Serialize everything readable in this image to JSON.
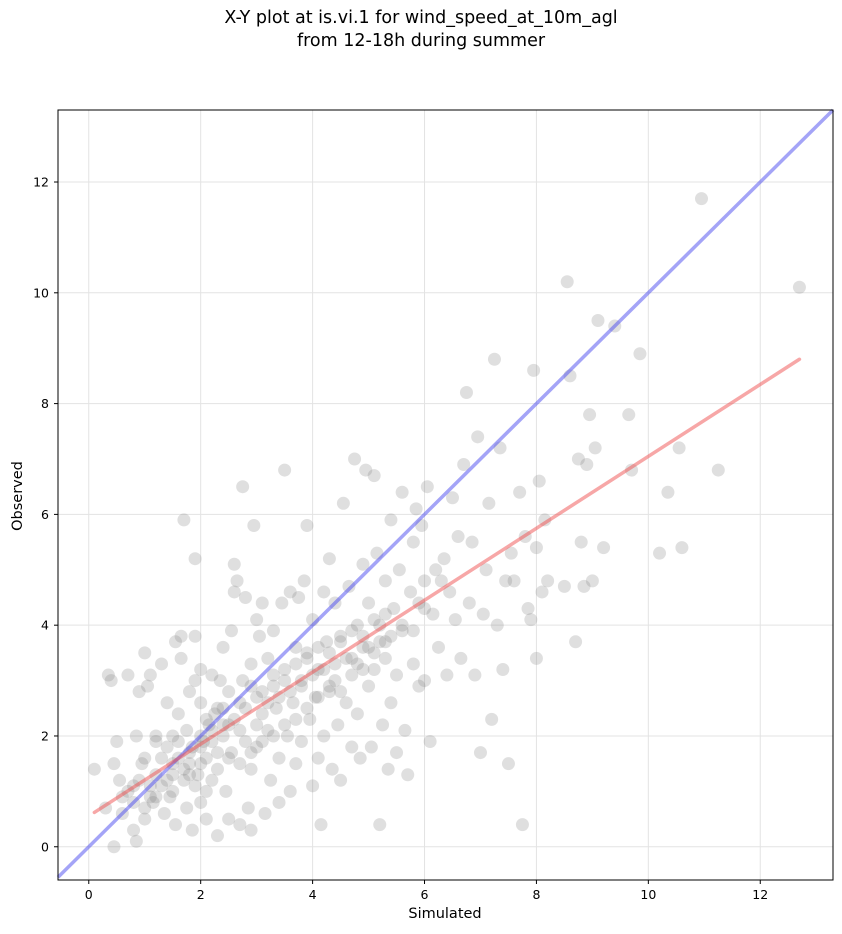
{
  "chart_data": {
    "type": "scatter",
    "title": [
      "X-Y plot at is.vi.1 for wind_speed_at_10m_agl",
      "from 12-18h during summer"
    ],
    "xlabel": "Simulated",
    "ylabel": "Observed",
    "xlim": [
      -0.55,
      13.3
    ],
    "ylim": [
      -0.6,
      13.3
    ],
    "xticks": [
      0,
      2,
      4,
      6,
      8,
      10,
      12
    ],
    "yticks": [
      0,
      2,
      4,
      6,
      8,
      10,
      12
    ],
    "grid": true,
    "colors": {
      "points": "#808080",
      "identity_line": "#4a4af0",
      "fit_line": "#f05050"
    },
    "identity_line": {
      "x": [
        -0.55,
        13.3
      ],
      "y": [
        -0.55,
        13.3
      ]
    },
    "fit_line": {
      "x": [
        0.1,
        12.7
      ],
      "y": [
        0.62,
        8.8
      ]
    },
    "points": [
      [
        0.1,
        1.4
      ],
      [
        0.3,
        0.7
      ],
      [
        0.35,
        3.1
      ],
      [
        0.4,
        3.0
      ],
      [
        0.45,
        1.5
      ],
      [
        0.45,
        0.0
      ],
      [
        0.5,
        1.9
      ],
      [
        0.55,
        1.2
      ],
      [
        0.6,
        0.6
      ],
      [
        0.7,
        3.1
      ],
      [
        0.8,
        1.1
      ],
      [
        0.8,
        0.3
      ],
      [
        0.85,
        2.0
      ],
      [
        0.85,
        0.1
      ],
      [
        0.9,
        2.8
      ],
      [
        0.95,
        1.5
      ],
      [
        1.0,
        0.5
      ],
      [
        1.0,
        3.5
      ],
      [
        1.05,
        2.9
      ],
      [
        1.1,
        3.1
      ],
      [
        1.1,
        1.1
      ],
      [
        1.15,
        0.8
      ],
      [
        1.2,
        1.9
      ],
      [
        1.2,
        2.0
      ],
      [
        1.3,
        3.3
      ],
      [
        1.3,
        1.6
      ],
      [
        1.35,
        0.6
      ],
      [
        1.4,
        2.6
      ],
      [
        1.45,
        0.9
      ],
      [
        1.5,
        1.5
      ],
      [
        1.5,
        2.0
      ],
      [
        1.55,
        3.7
      ],
      [
        1.55,
        0.4
      ],
      [
        1.6,
        2.4
      ],
      [
        1.65,
        3.8
      ],
      [
        1.65,
        3.4
      ],
      [
        1.7,
        5.9
      ],
      [
        1.7,
        1.2
      ],
      [
        1.75,
        2.1
      ],
      [
        1.75,
        0.7
      ],
      [
        1.8,
        2.8
      ],
      [
        1.8,
        1.3
      ],
      [
        1.85,
        0.3
      ],
      [
        1.85,
        1.8
      ],
      [
        1.9,
        5.2
      ],
      [
        1.9,
        3.8
      ],
      [
        1.9,
        3.0
      ],
      [
        1.95,
        1.3
      ],
      [
        2.0,
        0.8
      ],
      [
        2.0,
        2.6
      ],
      [
        2.0,
        3.2
      ],
      [
        2.0,
        2.0
      ],
      [
        2.05,
        1.9
      ],
      [
        2.1,
        1.6
      ],
      [
        2.1,
        0.5
      ],
      [
        2.15,
        2.2
      ],
      [
        2.2,
        3.1
      ],
      [
        2.2,
        1.2
      ],
      [
        2.25,
        2.4
      ],
      [
        2.3,
        0.2
      ],
      [
        2.3,
        1.7
      ],
      [
        2.35,
        3.0
      ],
      [
        2.4,
        3.6
      ],
      [
        2.4,
        2.5
      ],
      [
        2.45,
        1.0
      ],
      [
        2.5,
        2.2
      ],
      [
        2.5,
        0.5
      ],
      [
        2.55,
        3.9
      ],
      [
        2.55,
        1.7
      ],
      [
        2.6,
        5.1
      ],
      [
        2.6,
        4.6
      ],
      [
        2.65,
        4.8
      ],
      [
        2.7,
        2.1
      ],
      [
        2.7,
        0.4
      ],
      [
        2.75,
        3.0
      ],
      [
        2.75,
        6.5
      ],
      [
        2.8,
        1.9
      ],
      [
        2.8,
        4.5
      ],
      [
        2.85,
        0.7
      ],
      [
        2.9,
        3.3
      ],
      [
        2.9,
        1.4
      ],
      [
        2.9,
        0.3
      ],
      [
        2.95,
        5.8
      ],
      [
        3.0,
        4.1
      ],
      [
        3.0,
        2.7
      ],
      [
        3.0,
        1.8
      ],
      [
        3.05,
        3.8
      ],
      [
        3.1,
        2.4
      ],
      [
        3.1,
        4.4
      ],
      [
        3.15,
        0.6
      ],
      [
        3.2,
        3.4
      ],
      [
        3.2,
        2.1
      ],
      [
        3.25,
        1.2
      ],
      [
        3.3,
        3.9
      ],
      [
        3.3,
        2.9
      ],
      [
        3.35,
        2.5
      ],
      [
        3.4,
        1.6
      ],
      [
        3.4,
        0.8
      ],
      [
        3.45,
        4.4
      ],
      [
        3.5,
        6.8
      ],
      [
        3.5,
        3.2
      ],
      [
        3.55,
        2.0
      ],
      [
        3.6,
        4.6
      ],
      [
        3.6,
        1.0
      ],
      [
        3.65,
        2.6
      ],
      [
        3.7,
        3.6
      ],
      [
        3.7,
        1.5
      ],
      [
        3.75,
        4.5
      ],
      [
        3.8,
        2.9
      ],
      [
        3.8,
        1.9
      ],
      [
        3.85,
        4.8
      ],
      [
        3.9,
        5.8
      ],
      [
        3.9,
        3.5
      ],
      [
        3.95,
        2.3
      ],
      [
        4.0,
        1.1
      ],
      [
        4.0,
        4.1
      ],
      [
        4.05,
        2.7
      ],
      [
        4.1,
        3.2
      ],
      [
        4.1,
        1.6
      ],
      [
        4.15,
        0.4
      ],
      [
        4.2,
        4.6
      ],
      [
        4.2,
        2.0
      ],
      [
        4.25,
        3.7
      ],
      [
        4.3,
        5.2
      ],
      [
        4.3,
        2.8
      ],
      [
        4.35,
        1.4
      ],
      [
        4.4,
        4.4
      ],
      [
        4.4,
        3.0
      ],
      [
        4.45,
        2.2
      ],
      [
        4.5,
        3.8
      ],
      [
        4.5,
        1.2
      ],
      [
        4.55,
        6.2
      ],
      [
        4.6,
        2.6
      ],
      [
        4.65,
        4.7
      ],
      [
        4.7,
        3.4
      ],
      [
        4.7,
        1.8
      ],
      [
        4.75,
        7.0
      ],
      [
        4.8,
        4.0
      ],
      [
        4.8,
        2.4
      ],
      [
        4.85,
        1.6
      ],
      [
        4.9,
        3.6
      ],
      [
        4.9,
        5.1
      ],
      [
        4.95,
        6.8
      ],
      [
        5.0,
        2.9
      ],
      [
        5.0,
        4.4
      ],
      [
        5.05,
        1.8
      ],
      [
        5.1,
        6.7
      ],
      [
        5.1,
        3.2
      ],
      [
        5.15,
        5.3
      ],
      [
        5.2,
        4.0
      ],
      [
        5.2,
        0.4
      ],
      [
        5.25,
        2.2
      ],
      [
        5.3,
        4.8
      ],
      [
        5.3,
        3.7
      ],
      [
        5.35,
        1.4
      ],
      [
        5.4,
        5.9
      ],
      [
        5.4,
        2.6
      ],
      [
        5.45,
        4.3
      ],
      [
        5.5,
        3.1
      ],
      [
        5.5,
        1.7
      ],
      [
        5.55,
        5.0
      ],
      [
        5.6,
        6.4
      ],
      [
        5.6,
        3.9
      ],
      [
        5.65,
        2.1
      ],
      [
        5.7,
        1.3
      ],
      [
        5.75,
        4.6
      ],
      [
        5.8,
        5.5
      ],
      [
        5.8,
        3.3
      ],
      [
        5.85,
        6.1
      ],
      [
        5.9,
        4.4
      ],
      [
        5.9,
        2.9
      ],
      [
        5.95,
        5.8
      ],
      [
        6.0,
        4.8
      ],
      [
        6.0,
        3.0
      ],
      [
        6.05,
        6.5
      ],
      [
        6.1,
        1.9
      ],
      [
        6.15,
        4.2
      ],
      [
        6.2,
        5.0
      ],
      [
        6.25,
        3.6
      ],
      [
        6.3,
        4.8
      ],
      [
        6.35,
        5.2
      ],
      [
        6.4,
        3.1
      ],
      [
        6.45,
        4.6
      ],
      [
        6.5,
        6.3
      ],
      [
        6.55,
        4.1
      ],
      [
        6.6,
        5.6
      ],
      [
        6.65,
        3.4
      ],
      [
        6.7,
        6.9
      ],
      [
        6.75,
        8.2
      ],
      [
        6.8,
        4.4
      ],
      [
        6.85,
        5.5
      ],
      [
        6.9,
        3.1
      ],
      [
        6.95,
        7.4
      ],
      [
        7.0,
        1.7
      ],
      [
        7.05,
        4.2
      ],
      [
        7.1,
        5.0
      ],
      [
        7.15,
        6.2
      ],
      [
        7.2,
        2.3
      ],
      [
        7.25,
        8.8
      ],
      [
        7.3,
        4.0
      ],
      [
        7.35,
        7.2
      ],
      [
        7.4,
        3.2
      ],
      [
        7.45,
        4.8
      ],
      [
        7.5,
        1.5
      ],
      [
        7.55,
        5.3
      ],
      [
        7.6,
        4.8
      ],
      [
        7.7,
        6.4
      ],
      [
        7.75,
        0.4
      ],
      [
        7.8,
        5.6
      ],
      [
        7.85,
        4.3
      ],
      [
        7.9,
        4.1
      ],
      [
        7.95,
        8.6
      ],
      [
        8.0,
        5.4
      ],
      [
        8.0,
        3.4
      ],
      [
        8.05,
        6.6
      ],
      [
        8.1,
        4.6
      ],
      [
        8.15,
        5.9
      ],
      [
        8.2,
        4.8
      ],
      [
        8.5,
        4.7
      ],
      [
        8.55,
        10.2
      ],
      [
        8.6,
        8.5
      ],
      [
        8.7,
        3.7
      ],
      [
        8.75,
        7.0
      ],
      [
        8.8,
        5.5
      ],
      [
        8.85,
        4.7
      ],
      [
        8.9,
        6.9
      ],
      [
        8.95,
        7.8
      ],
      [
        9.0,
        4.8
      ],
      [
        9.05,
        7.2
      ],
      [
        9.1,
        9.5
      ],
      [
        9.2,
        5.4
      ],
      [
        9.4,
        9.4
      ],
      [
        9.65,
        7.8
      ],
      [
        9.7,
        6.8
      ],
      [
        9.85,
        8.9
      ],
      [
        10.2,
        5.3
      ],
      [
        10.35,
        6.4
      ],
      [
        10.55,
        7.2
      ],
      [
        10.6,
        5.4
      ],
      [
        10.95,
        11.7
      ],
      [
        11.25,
        6.8
      ],
      [
        12.7,
        10.1
      ],
      [
        1.0,
        1.6
      ],
      [
        1.2,
        1.3
      ],
      [
        1.4,
        1.8
      ],
      [
        1.6,
        1.9
      ],
      [
        1.8,
        1.7
      ],
      [
        2.0,
        1.5
      ],
      [
        2.2,
        1.9
      ],
      [
        2.4,
        2.0
      ],
      [
        2.6,
        2.3
      ],
      [
        2.8,
        2.5
      ],
      [
        3.0,
        2.2
      ],
      [
        3.2,
        2.6
      ],
      [
        3.4,
        2.7
      ],
      [
        3.6,
        2.8
      ],
      [
        3.8,
        3.0
      ],
      [
        4.0,
        3.1
      ],
      [
        4.2,
        3.2
      ],
      [
        4.4,
        3.3
      ],
      [
        4.6,
        3.4
      ],
      [
        4.8,
        3.3
      ],
      [
        5.0,
        3.6
      ],
      [
        5.2,
        3.7
      ],
      [
        5.4,
        3.8
      ],
      [
        5.6,
        4.0
      ],
      [
        5.8,
        3.9
      ],
      [
        6.0,
        4.3
      ],
      [
        2.1,
        2.3
      ],
      [
        2.3,
        2.5
      ],
      [
        2.5,
        2.8
      ],
      [
        2.7,
        2.6
      ],
      [
        2.9,
        2.9
      ],
      [
        3.1,
        2.8
      ],
      [
        3.3,
        3.1
      ],
      [
        3.5,
        3.0
      ],
      [
        3.7,
        3.3
      ],
      [
        3.9,
        3.4
      ],
      [
        4.1,
        3.6
      ],
      [
        4.3,
        3.5
      ],
      [
        4.5,
        3.7
      ],
      [
        4.7,
        3.9
      ],
      [
        4.9,
        3.8
      ],
      [
        5.1,
        4.1
      ],
      [
        5.3,
        4.2
      ],
      [
        1.5,
        1.0
      ],
      [
        1.7,
        1.4
      ],
      [
        1.9,
        1.1
      ],
      [
        2.1,
        1.0
      ],
      [
        2.3,
        1.4
      ],
      [
        2.5,
        1.6
      ],
      [
        2.7,
        1.5
      ],
      [
        2.9,
        1.7
      ],
      [
        3.1,
        1.9
      ],
      [
        3.3,
        2.0
      ],
      [
        3.5,
        2.2
      ],
      [
        3.7,
        2.3
      ],
      [
        3.9,
        2.5
      ],
      [
        4.1,
        2.7
      ],
      [
        4.3,
        2.9
      ],
      [
        4.5,
        2.8
      ],
      [
        4.7,
        3.1
      ],
      [
        4.9,
        3.2
      ],
      [
        5.1,
        3.5
      ],
      [
        5.3,
        3.4
      ],
      [
        0.7,
        1.0
      ],
      [
        0.9,
        1.2
      ],
      [
        1.1,
        0.9
      ],
      [
        1.3,
        1.1
      ],
      [
        1.5,
        1.3
      ],
      [
        0.6,
        0.9
      ],
      [
        0.8,
        0.8
      ],
      [
        1.0,
        0.7
      ],
      [
        1.2,
        0.9
      ],
      [
        1.4,
        1.2
      ],
      [
        1.6,
        1.6
      ],
      [
        1.8,
        1.5
      ],
      [
        2.0,
        1.8
      ],
      [
        2.2,
        2.1
      ],
      [
        2.4,
        2.2
      ]
    ]
  }
}
